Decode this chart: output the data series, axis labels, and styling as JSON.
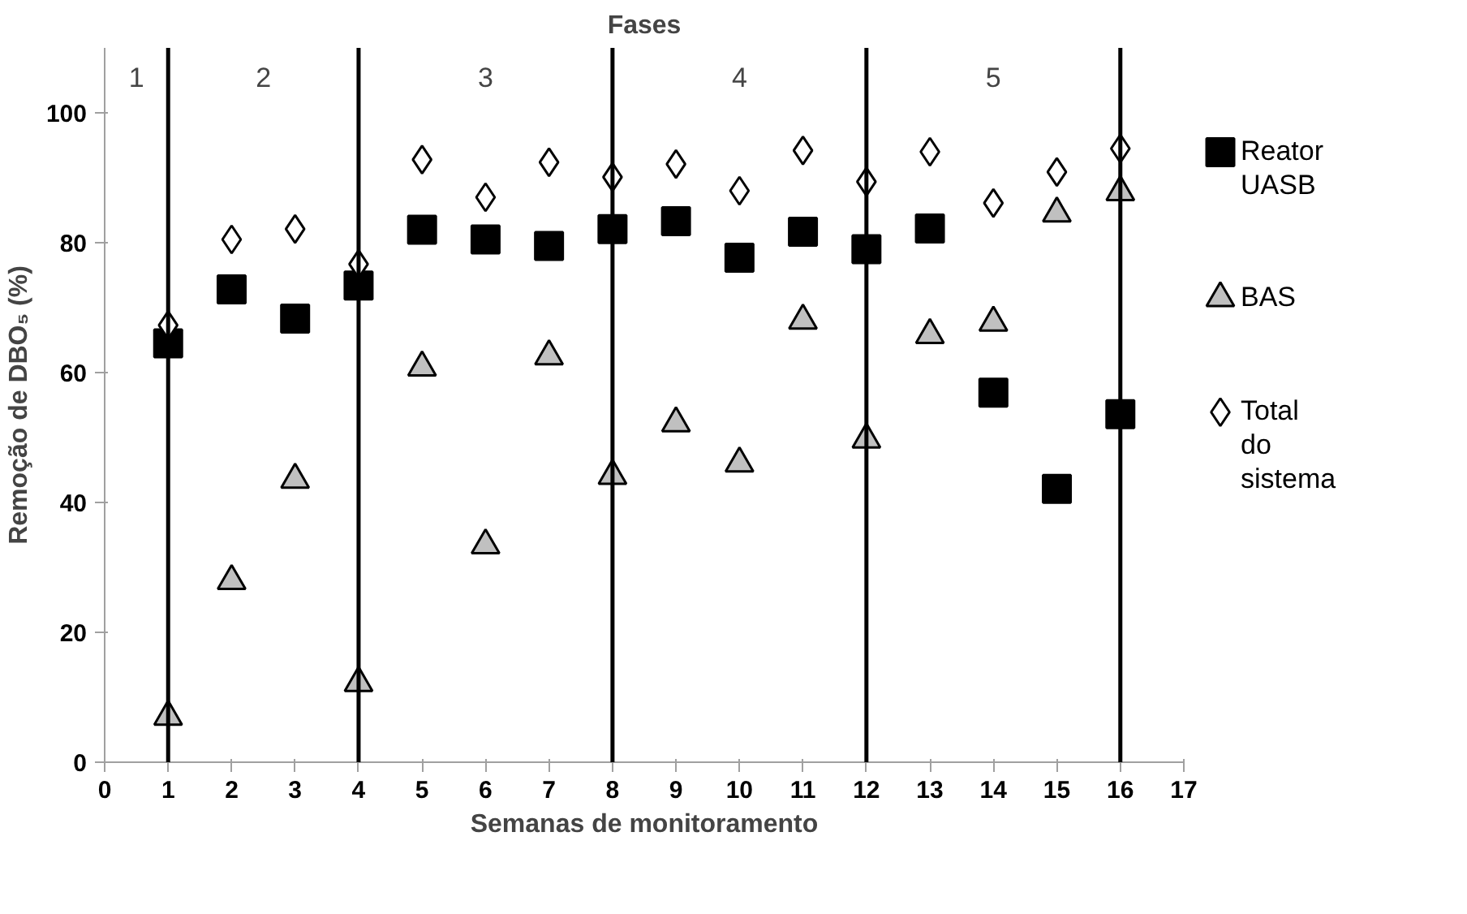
{
  "chart_data": {
    "type": "scatter",
    "title": "Fases",
    "xlabel": "Semanas de monitoramento",
    "ylabel": "Remoção de DBO₅ (%)",
    "x": [
      1,
      2,
      3,
      4,
      5,
      6,
      7,
      8,
      9,
      10,
      11,
      12,
      13,
      14,
      15,
      16
    ],
    "series": [
      {
        "name": "Reator UASB",
        "color": "#000000",
        "marker": "square",
        "values": [
          64.5,
          72.8,
          68.3,
          73.4,
          82,
          80.5,
          79.5,
          82.1,
          83.3,
          77.7,
          81.7,
          79,
          82.2,
          56.9,
          42.1,
          53.6
        ]
      },
      {
        "name": "BAS",
        "color": "#c0c0c0",
        "marker": "triangle",
        "values": [
          7,
          27.9,
          43.5,
          12.2,
          60.8,
          33.4,
          62.5,
          44.1,
          52.2,
          46,
          68,
          49.7,
          65.8,
          67.7,
          84.5,
          87.8
        ]
      },
      {
        "name": "Total do sistema",
        "color": "#ffffff",
        "marker": "diamond",
        "values": [
          67.3,
          80.5,
          82.1,
          76.7,
          92.8,
          87,
          92.4,
          90.1,
          92.1,
          88,
          94.2,
          89.4,
          94,
          86.1,
          90.9,
          94.5
        ]
      }
    ],
    "xlim": [
      0,
      17
    ],
    "xticks": [
      0,
      1,
      2,
      3,
      4,
      5,
      6,
      7,
      8,
      9,
      10,
      11,
      12,
      13,
      14,
      15,
      16,
      17
    ],
    "ylim": [
      0,
      110
    ],
    "yticks": [
      0,
      20,
      40,
      60,
      80,
      100
    ],
    "ref_lines": [
      {
        "axis": "x",
        "value": 1,
        "color": "#000000"
      },
      {
        "axis": "x",
        "value": 4,
        "color": "#000000"
      },
      {
        "axis": "x",
        "value": 8,
        "color": "#000000"
      },
      {
        "axis": "x",
        "value": 12,
        "color": "#000000"
      },
      {
        "axis": "x",
        "value": 16,
        "color": "#000000"
      }
    ],
    "annotations": [
      "1",
      "2",
      "3",
      "4",
      "5"
    ],
    "grid": false,
    "legend": "right"
  }
}
